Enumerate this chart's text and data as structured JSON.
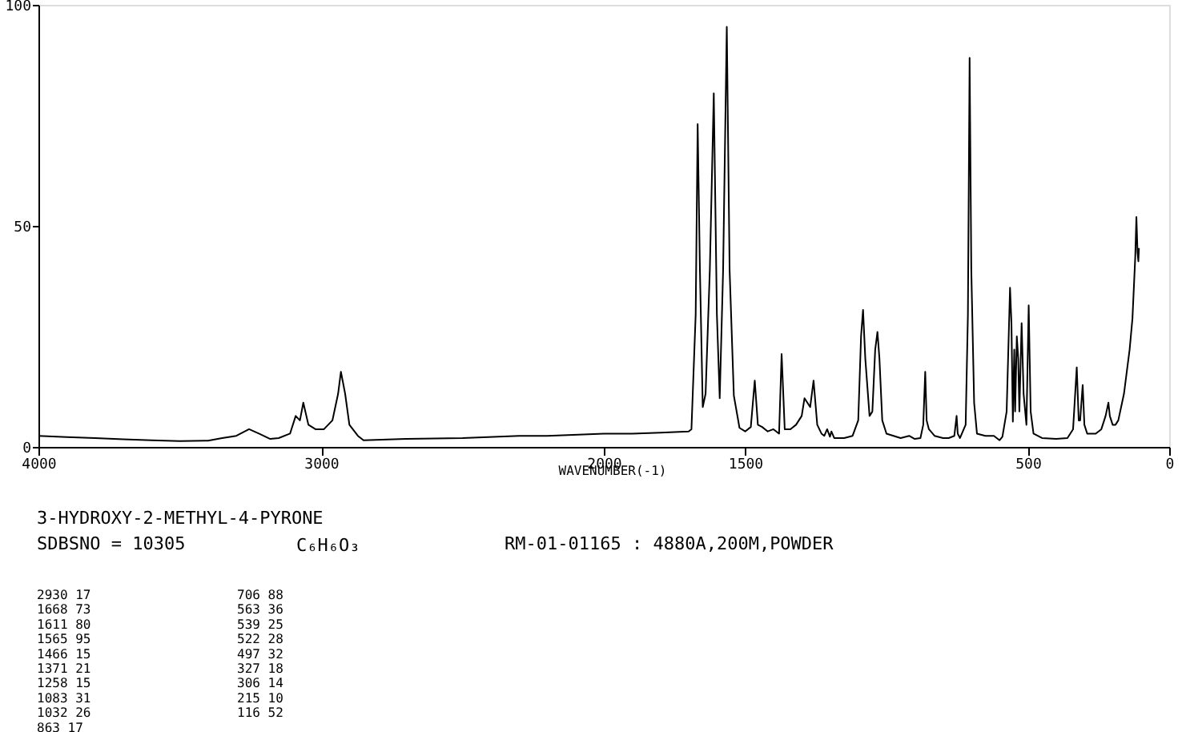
{
  "chart_data": {
    "type": "line",
    "title": "3-HYDROXY-2-METHYL-4-PYRONE",
    "subtitle": "SDBSNO = 10305",
    "xlabel": "WAVENUMBER(-1)",
    "annotations": [
      "C₆H₆O₃",
      "RM-01-01165 : 4880A,200M,POWDER",
      "2930   17",
      "1668   73",
      "1611   80",
      "1565   95",
      "1466   15",
      "1371   21",
      "1258   15",
      "1083   31",
      "1032   26",
      " 863   17",
      "706   88",
      "563   36",
      "539   25",
      "522   28",
      "497   32",
      "327   18",
      "306   14",
      "215   10",
      "116   52"
    ],
    "series": [
      {
        "color": "#000000",
        "x": [
          4000,
          3900,
          3800,
          3700,
          3600,
          3500,
          3400,
          3350,
          3300,
          3255,
          3220,
          3180,
          3150,
          3110,
          3090,
          3075,
          3063,
          3045,
          3020,
          2990,
          2960,
          2940,
          2930,
          2915,
          2900,
          2870,
          2850,
          2700,
          2500,
          2300,
          2200,
          2000,
          1900,
          1800,
          1700,
          1690,
          1675,
          1668,
          1660,
          1650,
          1640,
          1625,
          1611,
          1600,
          1590,
          1578,
          1565,
          1555,
          1540,
          1520,
          1500,
          1480,
          1466,
          1455,
          1440,
          1420,
          1400,
          1380,
          1371,
          1360,
          1340,
          1320,
          1300,
          1290,
          1280,
          1270,
          1258,
          1245,
          1230,
          1220,
          1210,
          1200,
          1195,
          1185,
          1150,
          1120,
          1100,
          1090,
          1083,
          1075,
          1060,
          1050,
          1040,
          1032,
          1025,
          1015,
          1000,
          950,
          920,
          900,
          880,
          870,
          863,
          858,
          850,
          830,
          800,
          780,
          760,
          752,
          748,
          740,
          720,
          712,
          706,
          700,
          690,
          680,
          650,
          620,
          600,
          590,
          575,
          563,
          558,
          553,
          548,
          545,
          539,
          534,
          530,
          522,
          515,
          505,
          497,
          490,
          480,
          450,
          400,
          360,
          340,
          327,
          320,
          315,
          306,
          300,
          290,
          260,
          240,
          225,
          215,
          210,
          200,
          190,
          180,
          170,
          160,
          150,
          140,
          130,
          120,
          116,
          112,
          109,
          107
        ],
        "values": [
          2.5,
          2.2,
          2,
          1.7,
          1.5,
          1.3,
          1.4,
          2,
          2.5,
          4,
          3,
          1.8,
          2,
          3,
          7,
          6,
          10,
          5,
          4,
          4,
          6,
          12,
          17,
          12,
          5,
          2.5,
          1.5,
          1.8,
          2,
          2.5,
          2.5,
          3,
          3,
          3.2,
          3.5,
          4,
          30,
          73,
          40,
          9,
          12,
          40,
          80,
          30,
          11,
          40,
          95,
          40,
          11.6,
          4.3,
          3.5,
          4.5,
          15,
          5,
          4.5,
          3.5,
          4,
          3,
          21,
          4,
          4,
          5,
          7,
          11,
          10,
          9,
          15,
          5,
          3,
          2.5,
          4,
          2.3,
          3.5,
          2,
          2,
          2.5,
          6,
          25,
          31,
          20,
          7,
          8,
          22,
          26,
          20,
          6,
          3,
          2,
          2.5,
          1.8,
          2,
          5,
          17,
          6,
          4,
          2.5,
          2,
          2,
          2.5,
          7,
          3,
          2,
          5,
          30,
          88,
          40,
          10,
          3,
          2.5,
          2.5,
          1.5,
          2.3,
          8,
          36,
          28,
          5.7,
          22,
          8,
          25,
          20,
          8,
          28,
          12,
          5,
          32,
          8,
          3,
          2,
          1.8,
          2,
          4,
          18,
          6,
          6,
          14,
          5,
          3,
          3,
          4,
          7,
          10,
          7,
          5,
          5,
          6,
          9,
          12,
          17,
          22,
          29,
          43,
          52,
          44,
          42,
          45
        ]
      }
    ],
    "xlim": [
      4000,
      0
    ],
    "ylim": [
      0,
      100
    ],
    "xticks": [
      4000,
      3000,
      2000,
      1500,
      500,
      0
    ],
    "yticks": [
      0,
      50,
      100
    ],
    "grid": false,
    "marker": "none",
    "line_style": "solid"
  }
}
